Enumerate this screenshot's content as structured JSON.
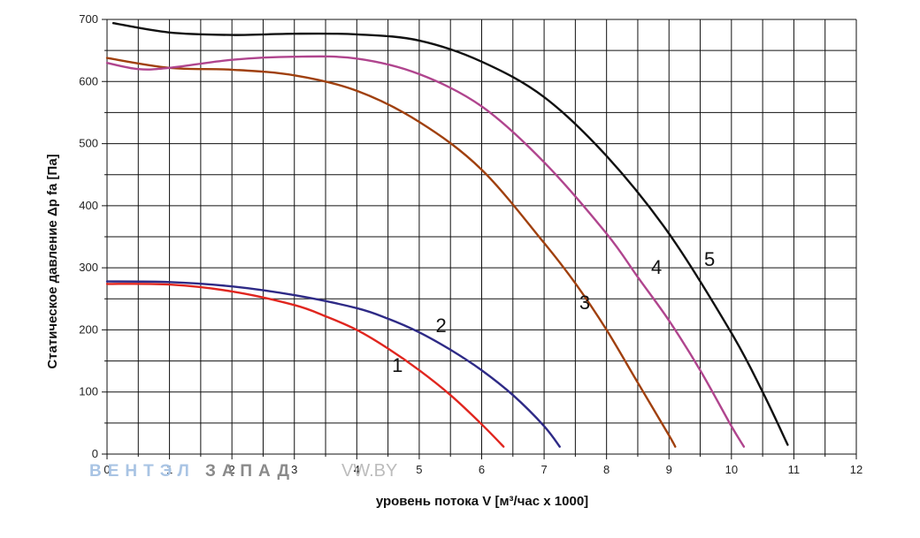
{
  "watermark": {
    "part1": "ВЕНТЭЛ",
    "part2": "ЗАПАД",
    "part3": "VW.BY",
    "colors": {
      "part1": "#a9c4e4",
      "part2": "#8a8a8a",
      "part3": "#bcbcbc"
    }
  },
  "chart_data": {
    "type": "line",
    "title": "",
    "xlabel": "уровень потока  V [м³/час x 1000]",
    "ylabel": "Статическое давление  Δp fa [Па]",
    "xlim": [
      0,
      12
    ],
    "ylim": [
      0,
      700
    ],
    "x_major_ticks": [
      "0",
      "1",
      "2",
      "3",
      "4",
      "5",
      "6",
      "7",
      "8",
      "9",
      "10",
      "11",
      "12"
    ],
    "y_major_ticks": [
      "0",
      "100",
      "200",
      "300",
      "400",
      "500",
      "600",
      "700"
    ],
    "x_minor_step": 0.5,
    "y_minor_step": 50,
    "grid": true,
    "legend": "none",
    "series": [
      {
        "name": "1",
        "color": "#e0261f",
        "x": [
          0,
          1,
          2,
          3,
          3.5,
          4,
          4.5,
          5,
          5.5,
          6,
          6.35
        ],
        "y": [
          274,
          273,
          262,
          240,
          222,
          200,
          170,
          135,
          95,
          48,
          12
        ]
      },
      {
        "name": "2",
        "color": "#2e2a86",
        "x": [
          0,
          1,
          2,
          3,
          4,
          4.5,
          5,
          5.5,
          6,
          6.5,
          7,
          7.25
        ],
        "y": [
          278,
          277,
          270,
          256,
          235,
          218,
          196,
          168,
          135,
          95,
          45,
          12
        ]
      },
      {
        "name": "3",
        "color": "#a0400e",
        "x": [
          0,
          1,
          2,
          3,
          4,
          5,
          6,
          7,
          7.5,
          8,
          8.5,
          9,
          9.1
        ],
        "y": [
          638,
          622,
          619,
          610,
          585,
          535,
          458,
          340,
          275,
          200,
          115,
          30,
          12
        ]
      },
      {
        "name": "4",
        "color": "#b0458e",
        "x": [
          0,
          0.5,
          1,
          2,
          3,
          4,
          5,
          6,
          7,
          8,
          8.5,
          9,
          9.5,
          10,
          10.2
        ],
        "y": [
          630,
          620,
          622,
          635,
          640,
          637,
          612,
          560,
          470,
          355,
          285,
          215,
          135,
          45,
          12
        ]
      },
      {
        "name": "5",
        "color": "#111111",
        "x": [
          0.1,
          1,
          2,
          3,
          4,
          5,
          6,
          7,
          8,
          9,
          10,
          10.5,
          10.9
        ],
        "y": [
          694,
          679,
          675,
          677,
          676,
          666,
          632,
          575,
          480,
          355,
          195,
          100,
          15
        ]
      }
    ],
    "annotations": [
      {
        "text": "1",
        "x": 4.65,
        "y": 132
      },
      {
        "text": "2",
        "x": 5.35,
        "y": 196
      },
      {
        "text": "3",
        "x": 7.65,
        "y": 233
      },
      {
        "text": "4",
        "x": 8.8,
        "y": 290
      },
      {
        "text": "5",
        "x": 9.65,
        "y": 303
      }
    ]
  }
}
